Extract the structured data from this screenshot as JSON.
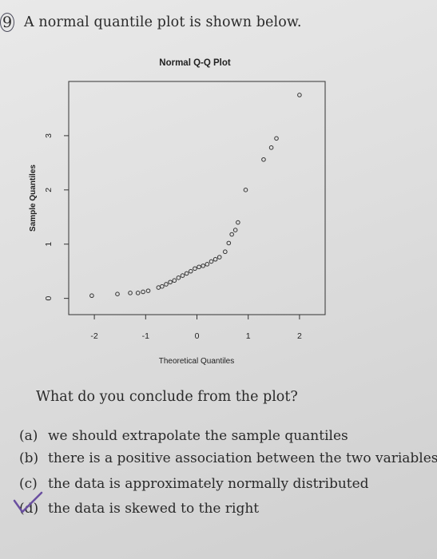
{
  "question": {
    "number": "9",
    "text": "A normal quantile plot is shown below.",
    "ask": "What do you conclude from the plot?",
    "options": [
      {
        "label": "(a)",
        "text": "we should extrapolate the sample quantiles"
      },
      {
        "label": "(b)",
        "text": "there is a positive association between the two variables"
      },
      {
        "label": "(c)",
        "text": "the data is approximately normally distributed"
      },
      {
        "label": "(d)",
        "text": "the data is skewed to the right"
      }
    ]
  },
  "chart_data": {
    "type": "scatter",
    "title": "Normal Q-Q Plot",
    "xlabel": "Theoretical Quantiles",
    "ylabel": "Sample Quantiles",
    "xlim": [
      -2.5,
      2.5
    ],
    "ylim": [
      -0.3,
      4.0
    ],
    "xticks": [
      -2,
      -1,
      0,
      1,
      2
    ],
    "xtick_labels": [
      "-2",
      "-1",
      "0",
      "1",
      "2"
    ],
    "yticks": [
      0,
      1,
      2,
      3
    ],
    "ytick_labels": [
      "0",
      "1",
      "2",
      "3"
    ],
    "grid": false,
    "x": [
      -2.05,
      -1.55,
      -1.3,
      -1.15,
      -1.05,
      -0.95,
      -0.75,
      -0.68,
      -0.6,
      -0.52,
      -0.44,
      -0.36,
      -0.28,
      -0.2,
      -0.12,
      -0.04,
      0.04,
      0.12,
      0.2,
      0.28,
      0.36,
      0.44,
      0.55,
      0.62,
      0.68,
      0.75,
      0.8,
      0.95,
      1.3,
      1.45,
      1.55,
      2.0
    ],
    "y": [
      0.05,
      0.08,
      0.1,
      0.1,
      0.12,
      0.14,
      0.2,
      0.22,
      0.26,
      0.3,
      0.33,
      0.38,
      0.42,
      0.46,
      0.5,
      0.55,
      0.58,
      0.6,
      0.63,
      0.68,
      0.72,
      0.76,
      0.86,
      1.02,
      1.18,
      1.26,
      1.4,
      2.0,
      2.56,
      2.78,
      2.95,
      3.75
    ]
  }
}
